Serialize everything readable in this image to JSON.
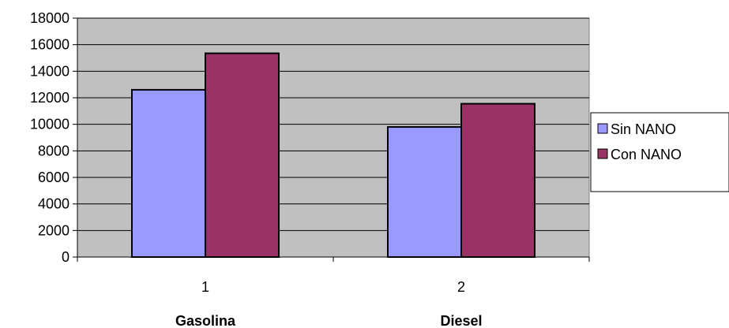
{
  "chart_data": {
    "type": "bar",
    "categories": [
      "1",
      "2"
    ],
    "group_labels": [
      "Gasolina",
      "Diesel"
    ],
    "series": [
      {
        "name": "Sin NANO",
        "color": "#9999ff",
        "values": [
          12600,
          9800
        ]
      },
      {
        "name": "Con NANO",
        "color": "#993366",
        "values": [
          15350,
          11550
        ]
      }
    ],
    "ylim": [
      0,
      18000
    ],
    "yticks": [
      "0",
      "2000",
      "4000",
      "6000",
      "8000",
      "10000",
      "12000",
      "14000",
      "16000",
      "18000"
    ],
    "grid": true,
    "plot_background": "#c0c0c0",
    "legend_position": "right"
  }
}
